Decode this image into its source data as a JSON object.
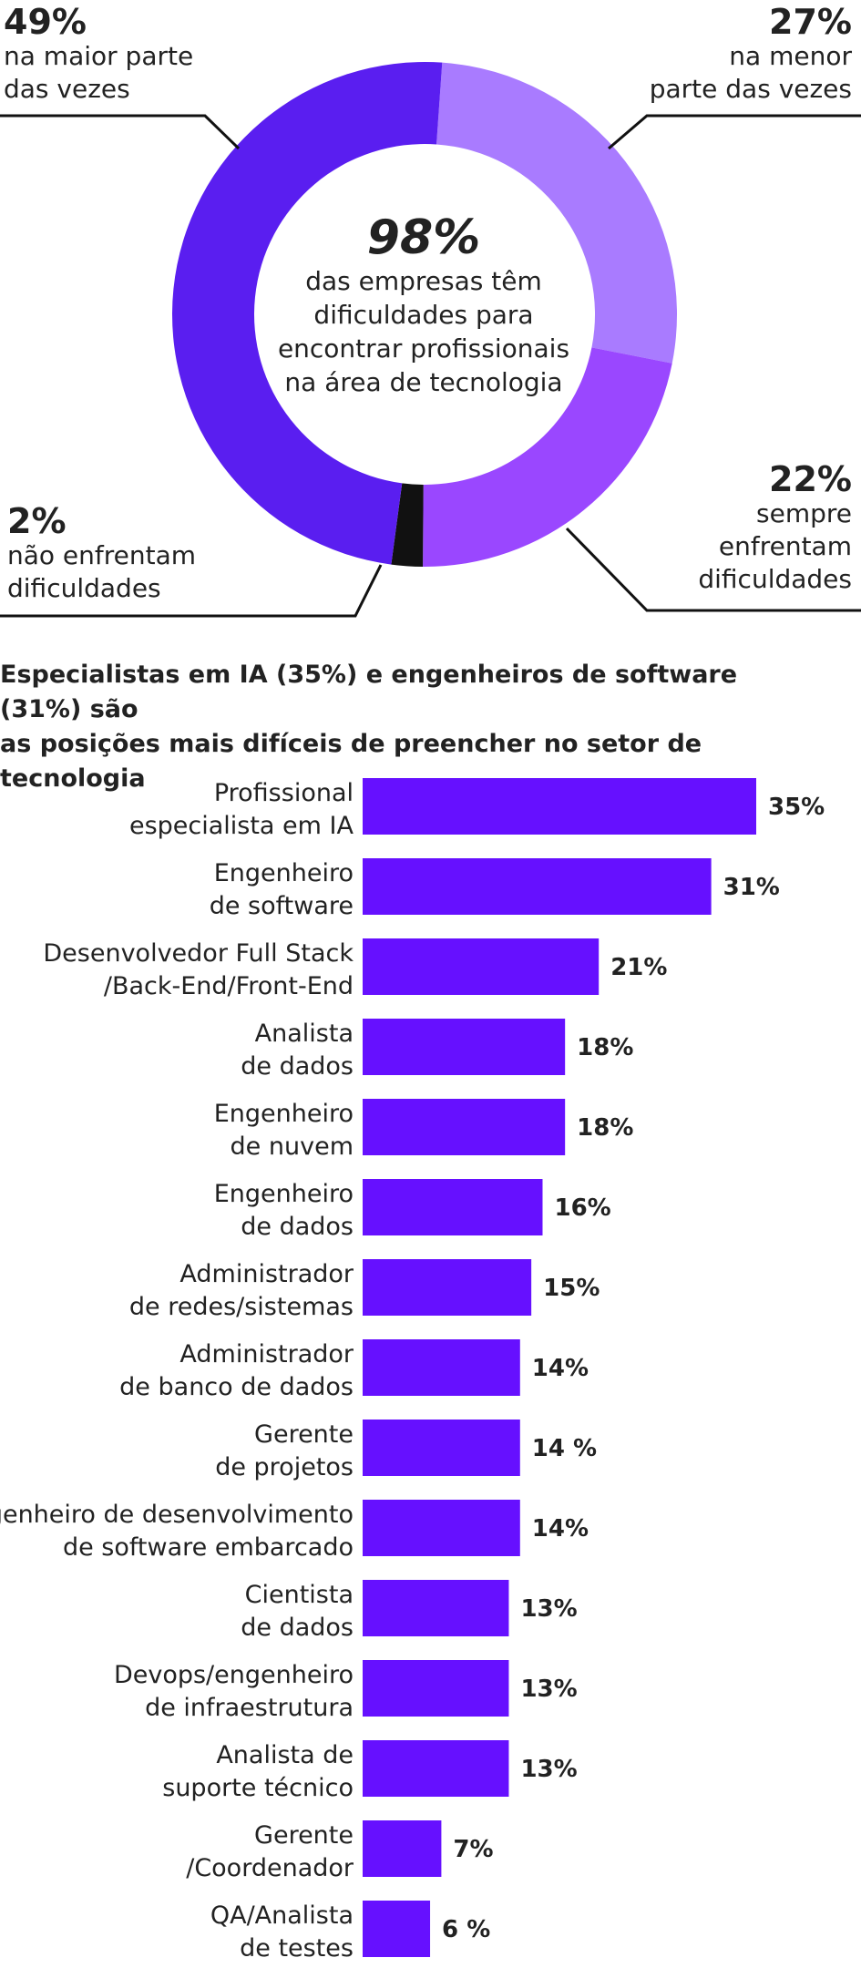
{
  "colors": {
    "dark_purple": "#5a1ef0",
    "light_purple": "#a97bff",
    "mid_purple": "#9a47ff",
    "black": "#111111",
    "bar": "#6610ff"
  },
  "chart_data": [
    {
      "type": "pie",
      "donut": true,
      "center": {
        "value": "98%",
        "label_lines": [
          "das empresas têm",
          "dificuldades para",
          "encontrar profissionais",
          "na área de tecnologia"
        ]
      },
      "slices": [
        {
          "value": 49,
          "pct_label": "49%",
          "label_lines": [
            "na maior parte",
            "das vezes"
          ],
          "color": "#5a1ef0"
        },
        {
          "value": 27,
          "pct_label": "27%",
          "label_lines": [
            "na menor",
            "parte das vezes"
          ],
          "color": "#a97bff"
        },
        {
          "value": 22,
          "pct_label": "22%",
          "label_lines": [
            "sempre",
            "enfrentam",
            "dificuldades"
          ],
          "color": "#9a47ff"
        },
        {
          "value": 2,
          "pct_label": "2%",
          "label_lines": [
            "não enfrentam",
            "dificuldades"
          ],
          "color": "#111111"
        }
      ]
    },
    {
      "type": "bar",
      "orientation": "horizontal",
      "title": "Especialistas em IA (35%) e engenheiros de software (31%) são as posições mais difíceis de preencher no setor de tecnologia",
      "title_lines": [
        "Especialistas em IA (35%) e engenheiros de software (31%) são",
        "as posições mais difíceis de preencher no setor de tecnologia"
      ],
      "xlim": [
        0,
        35
      ],
      "categories": [
        {
          "lines": [
            "Profissional",
            "especialista em IA"
          ],
          "value": 35,
          "label": "35%"
        },
        {
          "lines": [
            "Engenheiro",
            "de software"
          ],
          "value": 31,
          "label": "31%"
        },
        {
          "lines": [
            "Desenvolvedor Full Stack",
            "/Back-End/Front-End"
          ],
          "value": 21,
          "label": "21%"
        },
        {
          "lines": [
            "Analista",
            "de dados"
          ],
          "value": 18,
          "label": "18%"
        },
        {
          "lines": [
            "Engenheiro",
            "de nuvem"
          ],
          "value": 18,
          "label": "18%"
        },
        {
          "lines": [
            "Engenheiro",
            "de dados"
          ],
          "value": 16,
          "label": "16%"
        },
        {
          "lines": [
            "Administrador",
            "de redes/sistemas"
          ],
          "value": 15,
          "label": "15%"
        },
        {
          "lines": [
            "Administrador",
            "de banco de dados"
          ],
          "value": 14,
          "label": "14%"
        },
        {
          "lines": [
            "Gerente",
            "de projetos"
          ],
          "value": 14,
          "label": "14 %"
        },
        {
          "lines": [
            "Engenheiro de desenvolvimento",
            "de software embarcado"
          ],
          "value": 14,
          "label": "14%"
        },
        {
          "lines": [
            "Cientista",
            "de dados"
          ],
          "value": 13,
          "label": "13%"
        },
        {
          "lines": [
            "Devops/engenheiro",
            "de infraestrutura"
          ],
          "value": 13,
          "label": "13%"
        },
        {
          "lines": [
            "Analista de",
            "suporte técnico"
          ],
          "value": 13,
          "label": "13%"
        },
        {
          "lines": [
            "Gerente",
            "/Coordenador"
          ],
          "value": 7,
          "label": "7%"
        },
        {
          "lines": [
            "QA/Analista",
            "de testes"
          ],
          "value": 6,
          "label": "6 %"
        }
      ]
    }
  ]
}
